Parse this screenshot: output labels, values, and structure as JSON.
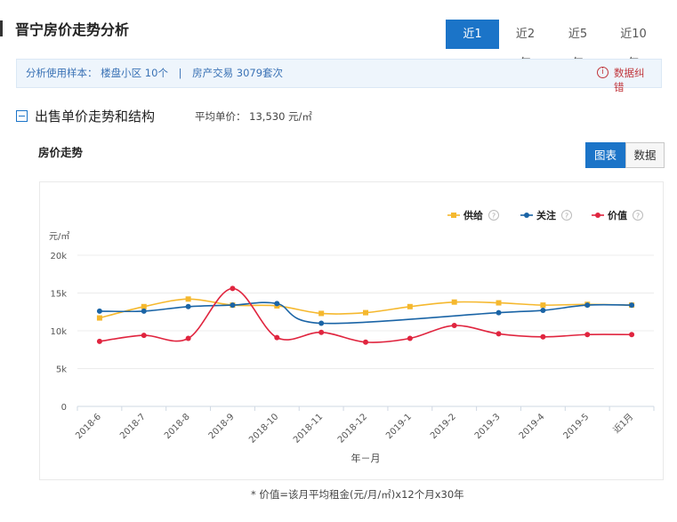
{
  "page": {
    "title": "晋宁房价走势分析",
    "range_tabs": [
      "近1 年",
      "近2 年",
      "近5 年",
      "近10 年"
    ],
    "active_range": "近1 年"
  },
  "sample": {
    "label": "分析使用样本：",
    "communities": "楼盘小区 10个",
    "separator": "|",
    "transactions": "房产交易 3079套次"
  },
  "feedback": {
    "icon": "info-circle-icon",
    "label": "数据纠错"
  },
  "section": {
    "icon": "collapse-minus-icon",
    "title": "出售单价走势和结构",
    "avg_price": "平均单价：  13,530 元/㎡"
  },
  "chart_section": {
    "title": "房价走势",
    "view_buttons": [
      "图表",
      "数据"
    ],
    "active_view": "图表"
  },
  "chart_data": {
    "type": "line",
    "ylabel": "元/㎡",
    "xlabel": "年－月",
    "ylim": [
      0,
      20000
    ],
    "yticks": [
      "0",
      "5k",
      "10k",
      "15k",
      "20k"
    ],
    "grid": true,
    "legend_position": "top-right",
    "categories": [
      "2018-6",
      "2018-7",
      "2018-8",
      "2018-9",
      "2018-10",
      "2018-11",
      "2018-12",
      "2019-1",
      "2019-2",
      "2019-3",
      "2019-4",
      "2019-5",
      "近1月"
    ],
    "series": [
      {
        "name": "供给",
        "color": "#f5b82e",
        "marker": "square",
        "values": [
          11700,
          13200,
          14200,
          13400,
          13300,
          12300,
          12400,
          13200,
          13800,
          13700,
          13400,
          13500,
          13400
        ]
      },
      {
        "name": "关注",
        "color": "#1a64a6",
        "marker": "circle",
        "values": [
          12600,
          12600,
          13200,
          13400,
          13600,
          11000,
          null,
          null,
          null,
          12400,
          12700,
          13400,
          13400
        ]
      },
      {
        "name": "价值",
        "color": "#e0253f",
        "marker": "circle",
        "values": [
          8600,
          9400,
          9000,
          15600,
          9100,
          9800,
          8500,
          9000,
          10700,
          9600,
          9200,
          9500,
          9500
        ]
      }
    ]
  },
  "footnote": "* 价值=该月平均租金(元/月/㎡)x12个月x30年"
}
